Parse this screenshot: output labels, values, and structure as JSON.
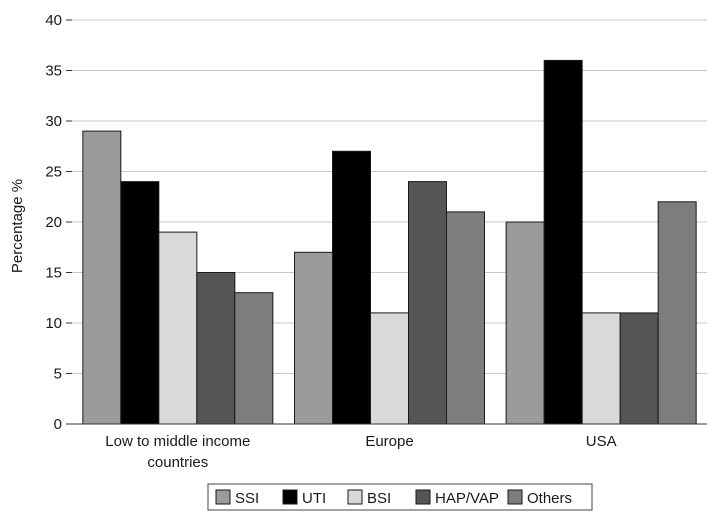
{
  "chart_data": {
    "type": "bar",
    "categories": [
      [
        "Low to middle income",
        "countries"
      ],
      [
        "Europe"
      ],
      [
        "USA"
      ]
    ],
    "series": [
      {
        "name": "SSI",
        "color": "#9b9b9b",
        "values": [
          29,
          17,
          20
        ]
      },
      {
        "name": "UTI",
        "color": "#000000",
        "values": [
          24,
          27,
          36
        ]
      },
      {
        "name": "BSI",
        "color": "#d9d9d9",
        "values": [
          19,
          11,
          11
        ]
      },
      {
        "name": "HAP/VAP",
        "color": "#555555",
        "values": [
          15,
          24,
          11
        ]
      },
      {
        "name": "Others",
        "color": "#7d7d7d",
        "values": [
          13,
          21,
          22
        ]
      }
    ],
    "ylabel": "Percentage %",
    "xlabel": "",
    "ylim": [
      0,
      40
    ],
    "yticks": [
      0,
      5,
      10,
      15,
      20,
      25,
      30,
      35,
      40
    ],
    "grid": "horizontal",
    "legend_position": "bottom"
  }
}
